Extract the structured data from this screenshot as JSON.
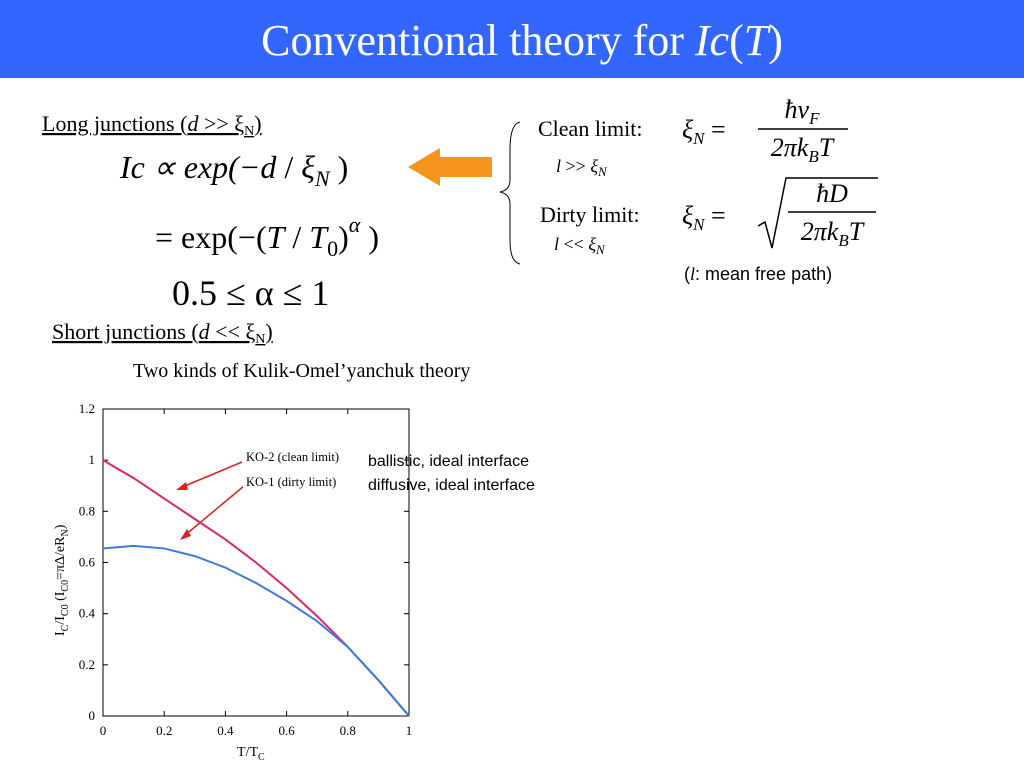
{
  "title": [
    "Conventional theory for ",
    "Ic",
    "(",
    "T",
    ")"
  ],
  "long": {
    "heading": [
      "Long junctions (",
      "d",
      " >> ξ",
      "N",
      ")"
    ],
    "eq1": [
      "Ic ∝ exp(−",
      "d",
      " / ",
      "ξ",
      "N",
      " )"
    ],
    "eq2": [
      "= exp(−(",
      "T",
      " / ",
      "T",
      "0",
      ")",
      "α",
      " )"
    ],
    "eq3": "0.5 ≤ α ≤ 1"
  },
  "clean": {
    "label": "Clean limit:",
    "cond": [
      "l",
      " >> ",
      "ξ",
      "N"
    ],
    "lhs": [
      "ξ",
      "N",
      " ="
    ],
    "num": [
      "ħv",
      "F"
    ],
    "den": [
      "2πk",
      "B",
      "T"
    ]
  },
  "dirty": {
    "label": "Dirty limit:",
    "cond": [
      "l",
      " << ",
      "ξ",
      "N"
    ],
    "lhs": [
      "ξ",
      "N",
      " ="
    ],
    "num": "ħD",
    "den": [
      "2πk",
      "B",
      "T"
    ]
  },
  "note": [
    "(",
    "l",
    ": mean free path)"
  ],
  "short": {
    "heading": [
      "Short junctions (",
      "d",
      " << ξ",
      "N",
      ")"
    ],
    "subtitle": "Two kinds of Kulik-Omel’yanchuk theory"
  },
  "chart_data": {
    "type": "line",
    "x": [
      0,
      0.1,
      0.2,
      0.3,
      0.4,
      0.5,
      0.6,
      0.7,
      0.8,
      0.9,
      1
    ],
    "series": [
      {
        "name": "KO-2 (clean limit)",
        "color": "#e0256a",
        "values": [
          1.0,
          0.93,
          0.85,
          0.77,
          0.69,
          0.6,
          0.5,
          0.39,
          0.27,
          0.14,
          0
        ]
      },
      {
        "name": "KO-1 (dirty limit)",
        "color": "#3a7de0",
        "values": [
          0.655,
          0.665,
          0.655,
          0.625,
          0.58,
          0.52,
          0.45,
          0.37,
          0.27,
          0.14,
          0
        ]
      }
    ],
    "annotations": [
      "ballistic, ideal interface",
      "diffusive, ideal interface"
    ],
    "xlabel": [
      "T/T",
      "C"
    ],
    "ylabel": [
      "I",
      "C",
      "/I",
      "C0",
      "   (I",
      "C0",
      "=πΔ/eR",
      "N",
      ")"
    ],
    "xlim": [
      0,
      1
    ],
    "xticks": [
      0,
      0.2,
      0.4,
      0.6,
      0.8,
      1
    ],
    "ylim": [
      0,
      1.2
    ],
    "yticks": [
      0,
      0.2,
      0.4,
      0.6,
      0.8,
      1,
      1.2
    ]
  }
}
